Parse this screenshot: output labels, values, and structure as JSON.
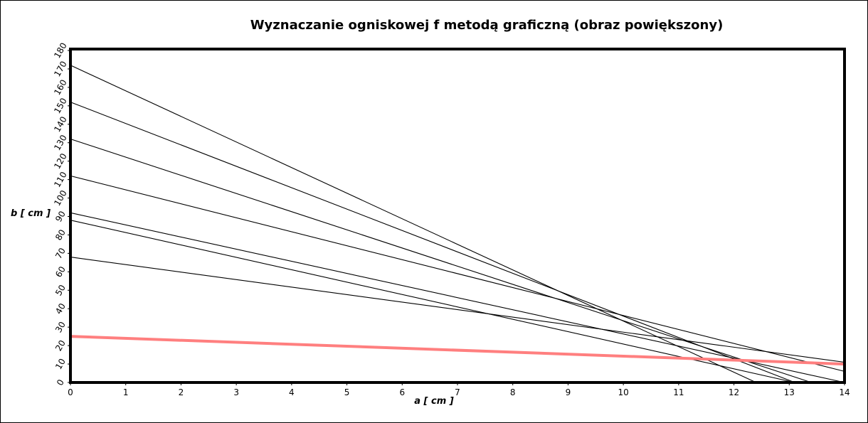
{
  "chart_data": {
    "type": "line",
    "title": "Wyznaczanie ogniskowej f metodą graficzną (obraz powiększony)",
    "xlabel": "a [ cm ]",
    "ylabel": "b [ cm ]",
    "xlim": [
      0,
      14
    ],
    "ylim": [
      0,
      180
    ],
    "xticks": [
      0,
      1,
      2,
      3,
      4,
      5,
      6,
      7,
      8,
      9,
      10,
      11,
      12,
      13,
      14
    ],
    "yticks": [
      0,
      10,
      20,
      30,
      40,
      50,
      60,
      70,
      80,
      90,
      100,
      110,
      120,
      130,
      140,
      150,
      160,
      170,
      180
    ],
    "grid": false,
    "legend": "none",
    "series": [
      {
        "x": [
          0,
          12.4
        ],
        "y": [
          172,
          0
        ],
        "color": "#000000"
      },
      {
        "x": [
          0,
          13.1
        ],
        "y": [
          152,
          0
        ],
        "color": "#000000"
      },
      {
        "x": [
          0,
          13.4
        ],
        "y": [
          132,
          0
        ],
        "color": "#000000"
      },
      {
        "x": [
          0,
          14
        ],
        "y": [
          112,
          6
        ],
        "color": "#000000"
      },
      {
        "x": [
          0,
          14
        ],
        "y": [
          92,
          0
        ],
        "color": "#000000"
      },
      {
        "x": [
          0,
          13.1
        ],
        "y": [
          88,
          0
        ],
        "color": "#000000"
      },
      {
        "x": [
          0,
          14
        ],
        "y": [
          68,
          11
        ],
        "color": "#000000"
      },
      {
        "x": [
          0,
          14
        ],
        "y": [
          25,
          10
        ],
        "color": "#ff7f7f"
      }
    ]
  }
}
